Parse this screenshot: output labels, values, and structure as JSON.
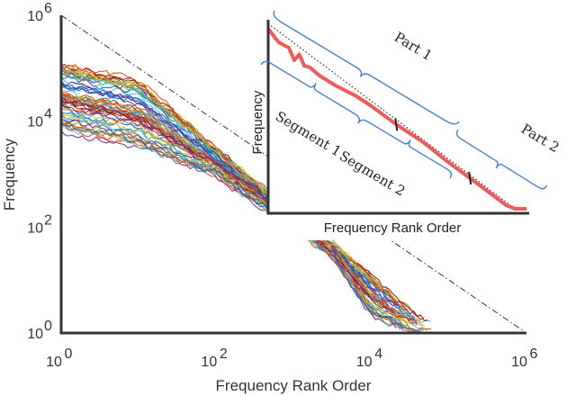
{
  "chart_data": [
    {
      "type": "line",
      "title": "",
      "xlabel": "Frequency Rank Order",
      "ylabel": "Frequency",
      "xscale": "log",
      "yscale": "log",
      "xlim": [
        1,
        1000000
      ],
      "ylim": [
        1,
        1000000
      ],
      "x_ticks": [
        {
          "value": 1,
          "base": "10",
          "exp": "0"
        },
        {
          "value": 100,
          "base": "10",
          "exp": "2"
        },
        {
          "value": 10000,
          "base": "10",
          "exp": "4"
        },
        {
          "value": 1000000,
          "base": "10",
          "exp": "6"
        }
      ],
      "y_ticks": [
        {
          "value": 1,
          "base": "10",
          "exp": "0"
        },
        {
          "value": 100,
          "base": "10",
          "exp": "2"
        },
        {
          "value": 10000,
          "base": "10",
          "exp": "4"
        },
        {
          "value": 1000000,
          "base": "10",
          "exp": "6"
        }
      ],
      "grid": false,
      "reference_line": {
        "style": "dash-dot",
        "color": "#333333",
        "x": [
          1,
          1000000
        ],
        "y": [
          1000000,
          1
        ]
      },
      "series_count": 60,
      "series_envelope": {
        "x": [
          1,
          10,
          100,
          500,
          3000,
          10000,
          30000,
          100000
        ],
        "y_low": [
          6000,
          2800,
          900,
          180,
          30,
          2,
          1,
          1
        ],
        "y_high": [
          120000,
          60000,
          3000,
          400,
          50,
          12,
          3,
          1
        ]
      },
      "palette": [
        "#0072BD",
        "#D95319",
        "#EDB120",
        "#7E2F8E",
        "#77AC30",
        "#4DBEEE",
        "#A2142F"
      ]
    },
    {
      "type": "line",
      "title": "",
      "xlabel": "Frequency Rank Order",
      "ylabel": "Frequency",
      "xscale": "log",
      "yscale": "log",
      "series": [
        {
          "color": "#ef5b5b",
          "x": [
            1,
            1.6,
            2.5,
            3.2,
            4,
            5,
            6.3,
            10,
            20,
            50,
            100,
            300,
            1000,
            3000,
            8000,
            20000,
            40000,
            60000,
            100000
          ],
          "y": [
            100000,
            50000,
            38000,
            20000,
            27000,
            15000,
            14000,
            9000,
            5500,
            3200,
            1900,
            750,
            300,
            110,
            48,
            22,
            12,
            10,
            10
          ]
        }
      ],
      "fit_line": {
        "style": "dotted",
        "color": "#333333"
      },
      "markers_x": [
        300,
        8000
      ],
      "brackets": [
        {
          "label": "Part 1"
        },
        {
          "label": "Part 2"
        },
        {
          "label": "Segment 1"
        },
        {
          "label": "Segment 2"
        }
      ]
    }
  ],
  "colors": {
    "axis": "#333333",
    "inset_series": "#ef5b5b",
    "bracket": "#4a7fc1"
  }
}
